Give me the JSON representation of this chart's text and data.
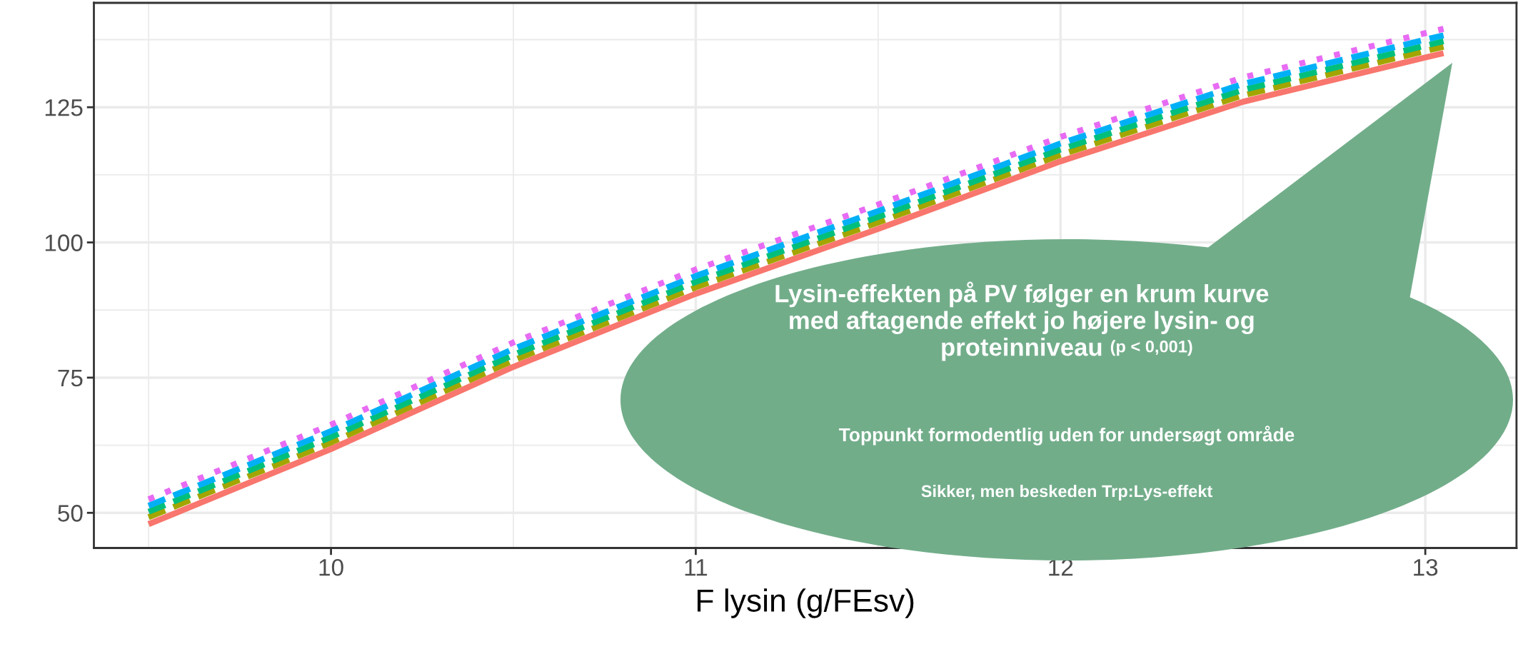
{
  "chart_data": {
    "type": "line",
    "xlabel": "F lysin (g/FEsv)",
    "x": [
      9.5,
      10,
      10.5,
      11,
      11.5,
      12,
      12.5,
      13,
      13.05
    ],
    "series": [
      {
        "color": "#f8766d",
        "line_style": "solid",
        "values": [
          47.9,
          61.8,
          77,
          90.5,
          102.5,
          115,
          126,
          134.2,
          135
        ]
      },
      {
        "color": "#a3a500",
        "line_style": "dashed",
        "values": [
          49.2,
          63,
          78.2,
          91.7,
          103.7,
          116.2,
          127.2,
          135.4,
          136.2
        ]
      },
      {
        "color": "#00bf7d",
        "line_style": "dashed",
        "values": [
          50.2,
          64,
          79.2,
          92.7,
          104.7,
          117.2,
          128.2,
          136.4,
          137.2
        ]
      },
      {
        "color": "#00b0f6",
        "line_style": "dashed",
        "values": [
          51.3,
          65.1,
          80.3,
          93.8,
          105.8,
          118.3,
          129.3,
          137.5,
          138.3
        ]
      },
      {
        "color": "#e76bf3",
        "line_style": "dotted",
        "values": [
          52.5,
          66.3,
          81.5,
          95,
          107,
          119.5,
          130.5,
          138.7,
          139.5
        ]
      }
    ],
    "xlim": [
      9.35,
      13.25
    ],
    "ylim": [
      43.5,
      144.3
    ],
    "xticks": [
      10,
      11,
      12,
      13
    ],
    "yticks": [
      50,
      75,
      100,
      125
    ],
    "grid": true,
    "legend": false,
    "marker": "none",
    "annotations": [
      "Lysin-effekten på PV følger en krum kurve\nmed aftagende effekt jo højere lysin- og\nproteinniveau",
      "(p < 0,001)",
      "Toppunkt formodentlig uden for undersøgt område",
      "Sikker, men beskeden Trp:Lys-effekt"
    ]
  }
}
